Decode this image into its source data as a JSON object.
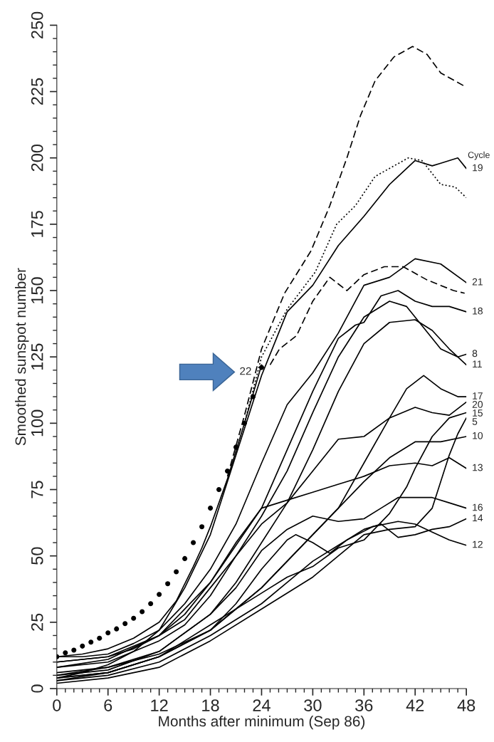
{
  "chart_data": {
    "type": "line",
    "xlabel": "Months after minimum (Sep 86)",
    "ylabel": "Smoothed sunspot number",
    "xlim": [
      0,
      48
    ],
    "xticks": [
      0,
      6,
      12,
      18,
      24,
      30,
      36,
      42,
      48
    ],
    "ylim": [
      0,
      250
    ],
    "yticks": [
      0,
      25,
      50,
      75,
      100,
      125,
      150,
      175,
      200,
      225,
      250
    ],
    "grid": false,
    "annotations": [
      "Cycle"
    ],
    "series": [
      {
        "type": "scatter",
        "marker": "circle",
        "color": "#000000",
        "x": [
          0,
          1,
          2,
          3,
          4,
          5,
          6,
          7,
          8,
          9,
          10,
          11,
          12,
          13,
          14,
          15,
          16,
          17,
          18,
          19,
          20,
          21,
          22,
          23,
          24
        ],
        "values": [
          12,
          13.5,
          14.5,
          16,
          17.5,
          19,
          21,
          22.5,
          24.5,
          26.5,
          29,
          32,
          35.5,
          39.5,
          44,
          49,
          55,
          61,
          68,
          75,
          82,
          91,
          100,
          110,
          121
        ]
      },
      {
        "name": "22",
        "color": "#000000",
        "line_style": "solid",
        "x": [
          0,
          3,
          6,
          9,
          12,
          14,
          16,
          17,
          18,
          20,
          22,
          24
        ],
        "values": [
          12,
          13,
          15,
          19,
          25,
          33,
          46,
          53,
          61,
          79,
          100,
          122
        ]
      },
      {
        "color": "#000000",
        "line_style": "dashed",
        "x": [
          20,
          22,
          24,
          26.7,
          29.8,
          32,
          34,
          35.6,
          37.3,
          39.5,
          41.7,
          43.4,
          45,
          47.8
        ],
        "values": [
          80,
          103,
          128,
          149,
          165,
          182,
          200,
          216,
          229,
          238,
          242,
          239,
          232,
          227
        ]
      },
      {
        "color": "#000000",
        "line_style": "dotted",
        "x": [
          22,
          24,
          27,
          30.3,
          32.8,
          35,
          37.3,
          41.2,
          42.8,
          45,
          46.7,
          48
        ],
        "values": [
          100,
          125,
          143,
          157,
          175,
          182,
          193,
          200,
          199,
          190,
          189,
          185
        ]
      },
      {
        "color": "#000000",
        "line_style": "dashed",
        "x": [
          25,
          26.1,
          28.1,
          30,
          32,
          34,
          36,
          38.4,
          40.6,
          43.4,
          46.5,
          47.8
        ],
        "values": [
          122,
          128,
          133,
          146,
          155,
          150,
          156,
          159,
          159,
          154,
          150,
          149
        ]
      },
      {
        "name": "19",
        "color": "#000000",
        "line_style": "solid",
        "x": [
          0,
          3,
          6,
          9,
          12,
          15,
          18,
          21,
          24,
          27,
          30,
          33,
          36,
          39,
          42,
          44,
          45,
          47,
          48
        ],
        "values": [
          4,
          6,
          9,
          14,
          22,
          38,
          58,
          88,
          118,
          142,
          152,
          167,
          178,
          190,
          199,
          197,
          198,
          200,
          196
        ]
      },
      {
        "name": "21",
        "color": "#000000",
        "line_style": "solid",
        "x": [
          0,
          3,
          6,
          9,
          12,
          15,
          18,
          21,
          24,
          27,
          30,
          33,
          36,
          39,
          42,
          45,
          48
        ],
        "values": [
          12,
          12,
          13,
          17,
          22,
          32,
          45,
          62,
          85,
          107,
          119,
          134,
          152,
          155,
          162,
          160,
          153
        ]
      },
      {
        "name": "18",
        "color": "#000000",
        "line_style": "solid",
        "x": [
          0,
          6,
          12,
          18,
          24,
          27,
          30,
          33,
          35,
          36,
          38,
          40,
          42,
          44,
          46,
          48
        ],
        "values": [
          10,
          12,
          20,
          40,
          68,
          90,
          112,
          132,
          137,
          138,
          148,
          150,
          146,
          144,
          144,
          142
        ]
      },
      {
        "name": "8",
        "color": "#000000",
        "line_style": "solid",
        "x": [
          0,
          6,
          12,
          15,
          18,
          21,
          24,
          27,
          30,
          33,
          36,
          39,
          41,
          43,
          45,
          47,
          48
        ],
        "values": [
          8,
          10,
          18,
          24,
          35,
          50,
          65,
          82,
          104,
          125,
          140,
          146,
          144,
          136,
          128,
          125,
          126
        ]
      },
      {
        "name": "11",
        "color": "#000000",
        "line_style": "solid",
        "x": [
          0,
          6,
          12,
          18,
          21,
          24,
          27,
          30,
          33,
          36,
          39,
          42,
          44,
          46,
          48
        ],
        "values": [
          5,
          8,
          14,
          28,
          40,
          55,
          70,
          90,
          112,
          130,
          138,
          139,
          135,
          128,
          122
        ]
      },
      {
        "name": "17",
        "color": "#000000",
        "line_style": "solid",
        "x": [
          0,
          6,
          12,
          18,
          24,
          27,
          30,
          33,
          36,
          39,
          41,
          43,
          45,
          47,
          48
        ],
        "values": [
          4,
          6,
          12,
          22,
          38,
          48,
          58,
          68,
          85,
          102,
          113,
          118,
          113,
          110,
          110
        ]
      },
      {
        "name": "20",
        "color": "#000000",
        "line_style": "solid",
        "x": [
          0,
          3,
          6,
          9,
          12,
          15,
          18,
          21,
          24,
          27,
          30,
          33,
          36,
          39,
          42,
          44,
          46,
          48
        ],
        "values": [
          10,
          11,
          12,
          15,
          20,
          26,
          38,
          50,
          62,
          70,
          82,
          94,
          95,
          102,
          106,
          104,
          103,
          108
        ]
      },
      {
        "name": "15",
        "color": "#000000",
        "line_style": "solid",
        "x": [
          0,
          6,
          12,
          18,
          24,
          27,
          30,
          33,
          36,
          39,
          41,
          42,
          44,
          46,
          48
        ],
        "values": [
          3,
          6,
          12,
          24,
          36,
          42,
          46,
          53,
          56,
          66,
          76,
          83,
          95,
          102,
          104
        ]
      },
      {
        "name": "5",
        "color": "#000000",
        "line_style": "solid",
        "x": [
          0,
          6,
          12,
          18,
          24,
          30,
          33,
          36,
          39,
          42,
          44,
          45,
          46,
          47,
          48
        ],
        "values": [
          2,
          4,
          8,
          18,
          30,
          42,
          50,
          58,
          60,
          61,
          68,
          78,
          88,
          96,
          102
        ]
      },
      {
        "name": "10",
        "color": "#000000",
        "line_style": "solid",
        "x": [
          0,
          6,
          12,
          18,
          24,
          27,
          30,
          33,
          36,
          39,
          42,
          45,
          48
        ],
        "values": [
          6,
          8,
          13,
          22,
          38,
          48,
          58,
          68,
          78,
          87,
          93,
          93,
          95
        ]
      },
      {
        "name": "13",
        "color": "#000000",
        "line_style": "solid",
        "x": [
          0,
          6,
          12,
          15,
          18,
          21,
          24,
          27,
          30,
          33,
          36,
          39,
          42,
          44,
          46,
          48
        ],
        "values": [
          8,
          11,
          20,
          28,
          40,
          55,
          68,
          71,
          74,
          77,
          80,
          84,
          85,
          84,
          87,
          83
        ]
      },
      {
        "name": "16",
        "color": "#000000",
        "line_style": "solid",
        "x": [
          0,
          6,
          12,
          18,
          21,
          24,
          27,
          30,
          33,
          36,
          38,
          40,
          44,
          46,
          48
        ],
        "values": [
          5,
          7,
          14,
          28,
          38,
          52,
          60,
          65,
          63,
          64,
          68,
          72,
          72,
          70,
          68
        ]
      },
      {
        "name": "14",
        "color": "#000000",
        "line_style": "solid",
        "x": [
          0,
          6,
          12,
          18,
          24,
          27,
          30,
          33,
          36,
          38,
          40,
          42,
          44,
          46,
          48
        ],
        "values": [
          3,
          5,
          10,
          20,
          32,
          40,
          48,
          54,
          60,
          62,
          57,
          58,
          60,
          61,
          64
        ]
      },
      {
        "name": "12",
        "color": "#000000",
        "line_style": "solid",
        "x": [
          0,
          6,
          12,
          18,
          21,
          24,
          27,
          28,
          30,
          32,
          34,
          37,
          40,
          42,
          44,
          46,
          48
        ],
        "values": [
          4,
          6,
          12,
          22,
          32,
          45,
          56,
          58,
          55,
          51,
          56,
          61,
          63,
          62,
          59,
          56,
          54
        ]
      }
    ]
  }
}
